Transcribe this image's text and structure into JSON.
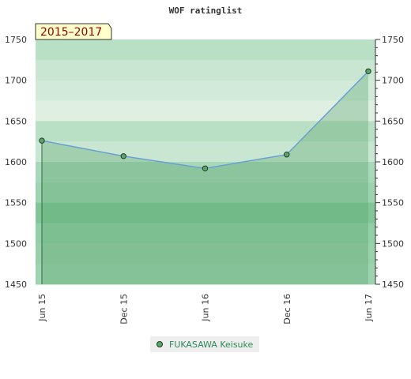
{
  "chart_data": {
    "type": "line",
    "title": "WOF ratinglist",
    "badge": "2015–2017",
    "x": [
      "Jun 15",
      "Dec 15",
      "Jun 16",
      "Dec 16",
      "Jun 17"
    ],
    "series": [
      {
        "name": "FUKASAWA Keisuke",
        "values": [
          1626,
          1607,
          1592,
          1609,
          1711
        ]
      }
    ],
    "ylim": [
      1450,
      1750
    ],
    "yticks": [
      1450,
      1500,
      1550,
      1600,
      1650,
      1700,
      1750
    ],
    "y_axis_both_sides": true,
    "grid": false,
    "area_fill": true,
    "legend": "bottom-center",
    "colors": {
      "line": "#6a9fd4",
      "marker_fill": "#5aa46e",
      "area_fill": "#5aa46e",
      "badge_bg": "#ffffcc",
      "band_light": "#eaf5ec",
      "band_dark": "#7cc494"
    }
  }
}
